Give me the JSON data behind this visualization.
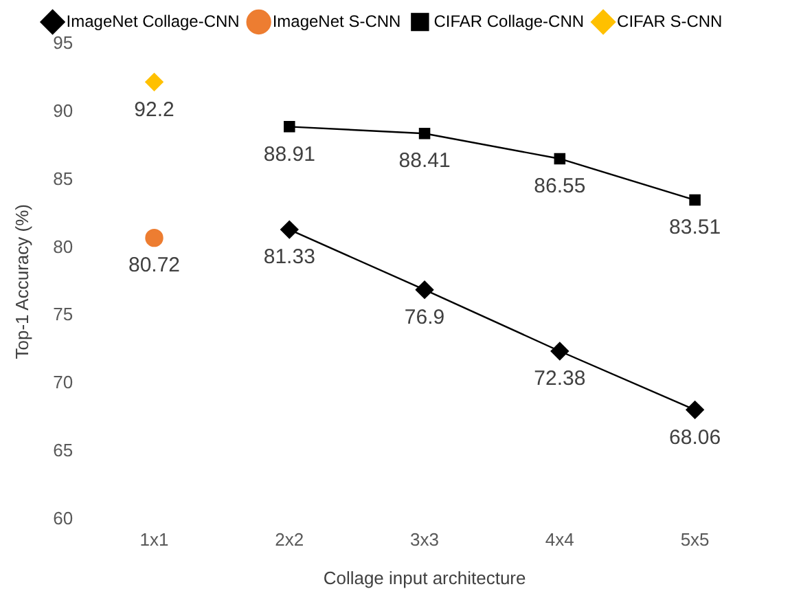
{
  "chart_data": {
    "type": "line",
    "xlabel": "Collage input architecture",
    "ylabel": "Top-1 Accuracy (%)",
    "categories": [
      "1x1",
      "2x2",
      "3x3",
      "4x4",
      "5x5"
    ],
    "series": [
      {
        "name": "ImageNet Collage-CNN",
        "color": "#000000",
        "marker": "diamond",
        "values": [
          null,
          81.33,
          76.9,
          72.38,
          68.06
        ]
      },
      {
        "name": "ImageNet S-CNN",
        "color": "#ed7d31",
        "marker": "circle",
        "values": [
          80.72,
          null,
          null,
          null,
          null
        ]
      },
      {
        "name": "CIFAR Collage-CNN",
        "color": "#000000",
        "marker": "square",
        "values": [
          null,
          88.91,
          88.41,
          86.55,
          83.51
        ]
      },
      {
        "name": "CIFAR S-CNN",
        "color": "#ffc000",
        "marker": "diamond",
        "values": [
          92.2,
          null,
          null,
          null,
          null
        ]
      }
    ],
    "ylim": [
      60,
      95
    ],
    "yticks": [
      60,
      65,
      70,
      75,
      80,
      85,
      90,
      95
    ],
    "grid": false,
    "legend": "top",
    "data_labels": true
  }
}
